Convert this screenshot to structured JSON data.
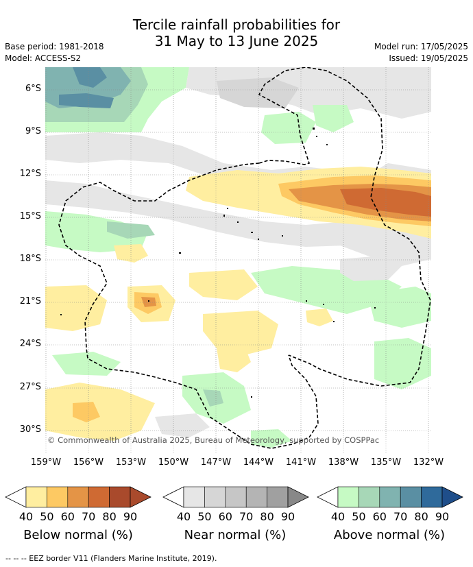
{
  "header": {
    "title_line1": "Tercile rainfall probabilities for",
    "title_line2": "31 May to 13 June 2025",
    "base_period": "Base period: 1981-2018",
    "model": "Model: ACCESS-S2",
    "model_run": "Model run: 17/05/2025",
    "issued": "Issued: 19/05/2025"
  },
  "map": {
    "lat_labels": [
      "6°S",
      "9°S",
      "12°S",
      "15°S",
      "18°S",
      "21°S",
      "24°S",
      "27°S",
      "30°S"
    ],
    "lon_labels": [
      "159°W",
      "156°W",
      "153°W",
      "150°W",
      "147°W",
      "144°W",
      "141°W",
      "138°W",
      "135°W",
      "132°W"
    ],
    "copyright": "© Commonwealth of Australia 2025, Bureau of Meteorology, supported by COSPPac",
    "colors": {
      "below": [
        "#ffeea0",
        "#fdc963",
        "#e49446",
        "#cf6a33",
        "#a94a2c"
      ],
      "near": [
        "#e6e6e6",
        "#d6d6d6",
        "#c6c6c6",
        "#b4b4b4",
        "#a0a0a0"
      ],
      "above": [
        "#c6fac4",
        "#a7d7b7",
        "#80b3b0",
        "#5a8fa3",
        "#2f6a9b"
      ]
    }
  },
  "legend": {
    "below": {
      "label": "Below normal (%)",
      "ticks": [
        "40",
        "50",
        "60",
        "70",
        "80",
        "90"
      ]
    },
    "near": {
      "label": "Near normal (%)",
      "ticks": [
        "40",
        "50",
        "60",
        "70",
        "80",
        "90"
      ]
    },
    "above": {
      "label": "Above normal (%)",
      "ticks": [
        "40",
        "50",
        "60",
        "70",
        "80",
        "90"
      ]
    }
  },
  "footer": "--  --  -- EEZ border V11 (Flanders Marine Institute, 2019)."
}
